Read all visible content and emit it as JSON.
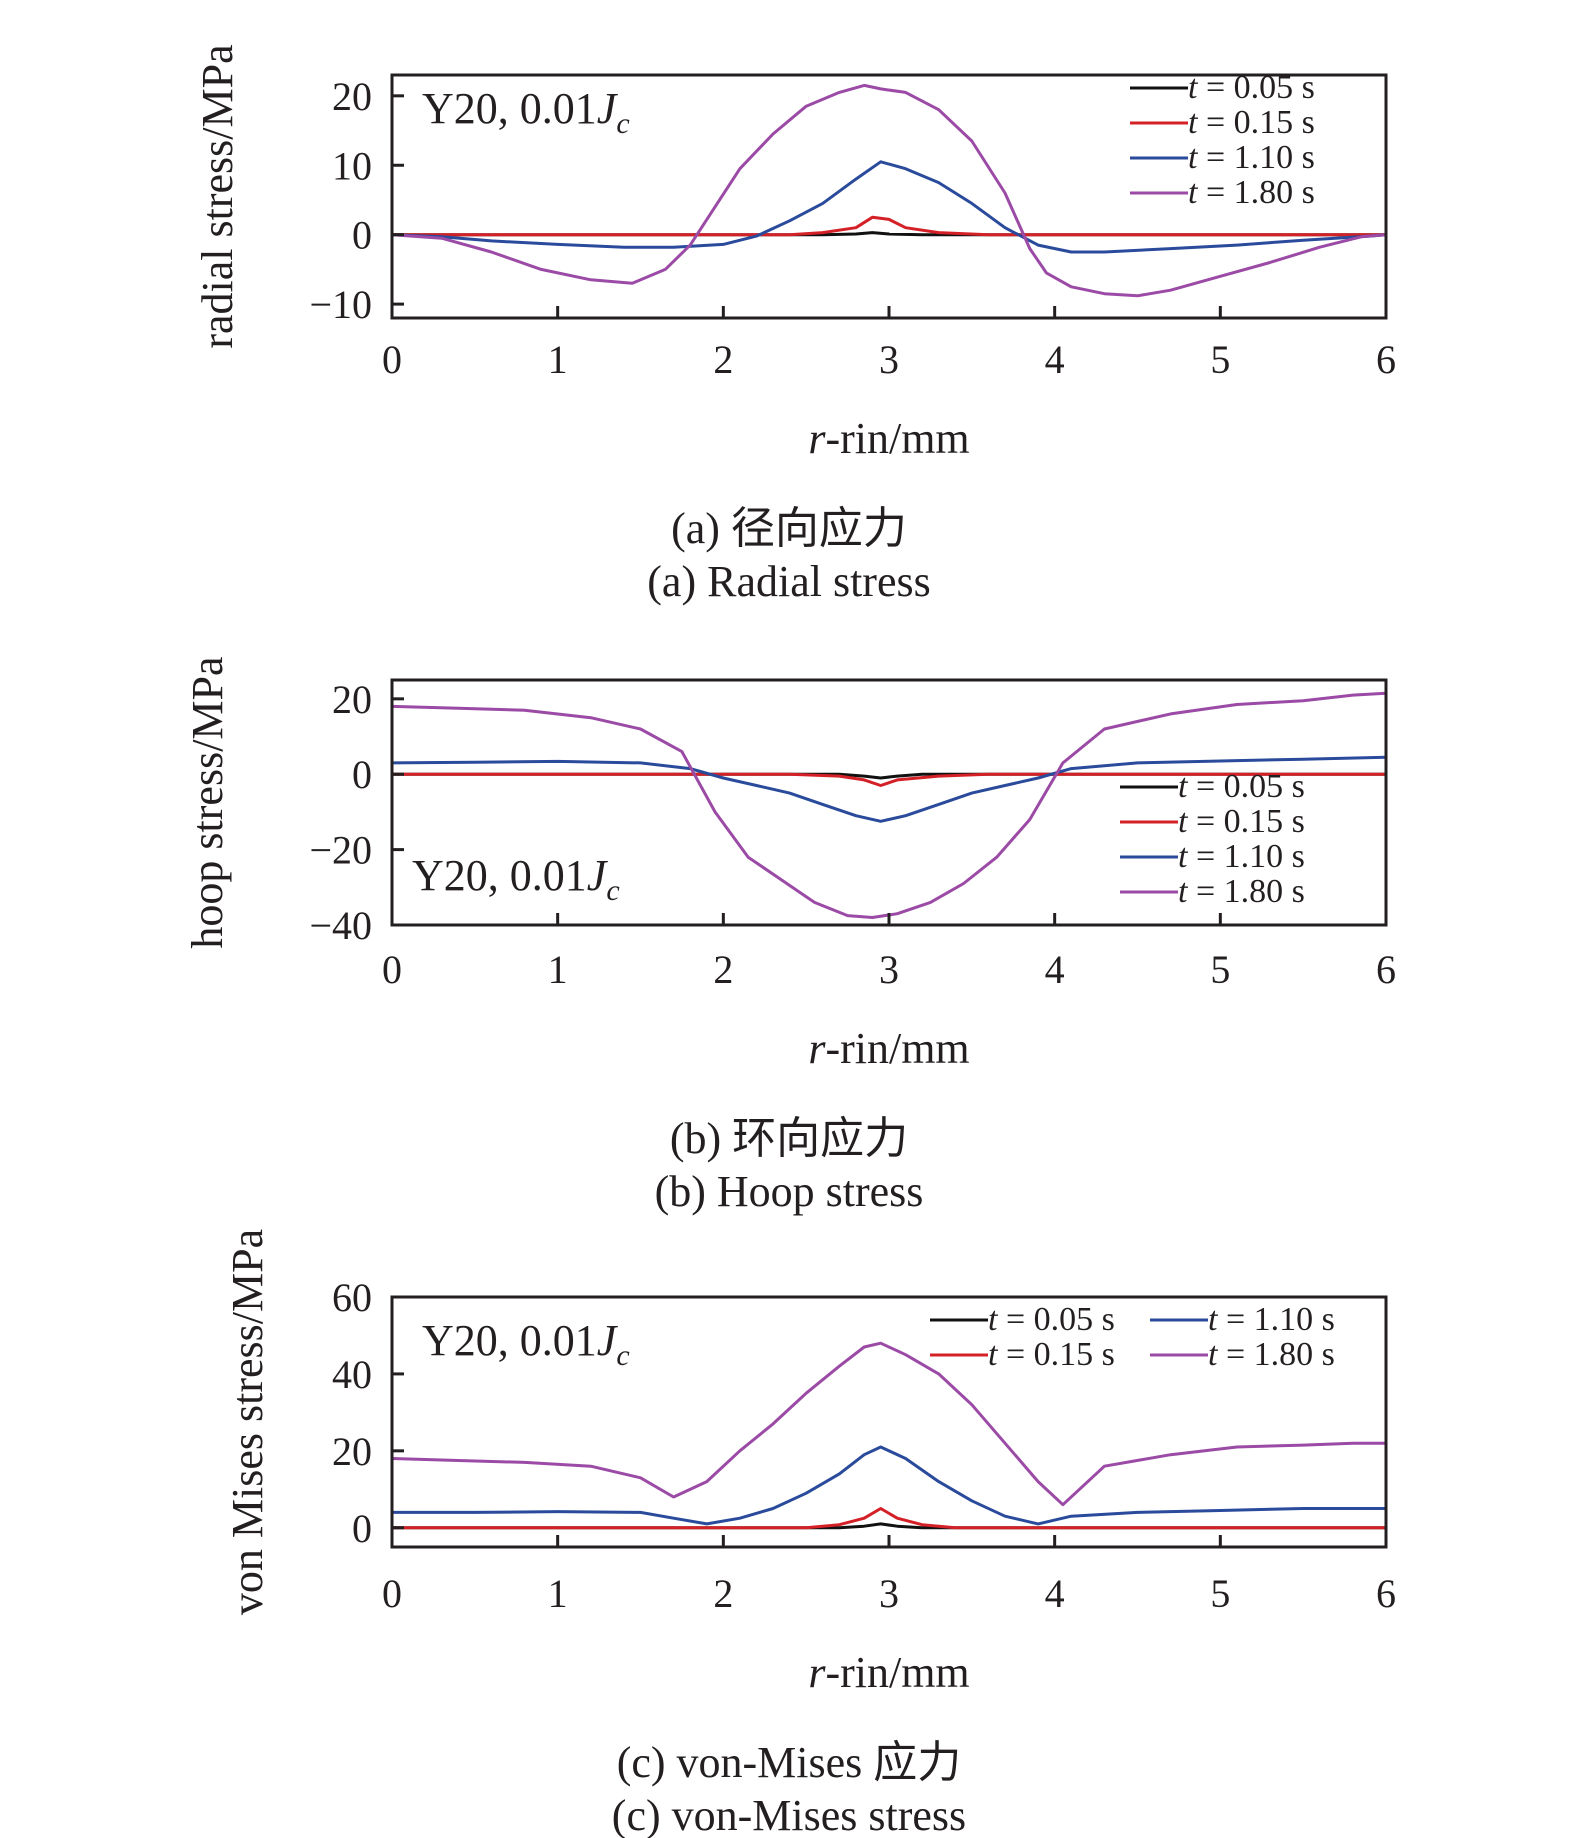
{
  "colors": {
    "t005": "#111111",
    "t015": "#d42027",
    "t110": "#2a4a9b",
    "t180": "#9b4aa6",
    "axis": "#231f20"
  },
  "chart_data": [
    {
      "id": "radial",
      "type": "line",
      "title": "",
      "xlabel_italic": "r",
      "xlabel_rest": "-rin/mm",
      "ylabel": "radial stress/MPa",
      "xlim": [
        0,
        6
      ],
      "ylim": [
        -12,
        23
      ],
      "xticks": [
        "0",
        "1",
        "2",
        "3",
        "4",
        "5",
        "6"
      ],
      "yticks": [
        {
          "value": -10,
          "label": "−10"
        },
        {
          "value": 0,
          "label": "0"
        },
        {
          "value": 10,
          "label": "10"
        },
        {
          "value": 20,
          "label": "20"
        }
      ],
      "annotation": {
        "main": "Y20, 0.01",
        "J": "J",
        "sub": "c"
      },
      "legend": {
        "placement": "top-right",
        "layout": "one-column"
      },
      "caption_cn": "(a) 径向应力",
      "caption_en": "(a) Radial stress",
      "series": [
        {
          "name_t": "t",
          "name_rest": " = 0.05 s",
          "color_key": "t005",
          "x": [
            0,
            2.6,
            2.8,
            2.9,
            3.0,
            3.2,
            6
          ],
          "y": [
            0,
            0,
            0.1,
            0.3,
            0.1,
            0,
            0
          ]
        },
        {
          "name_t": "t",
          "name_rest": " = 0.15 s",
          "color_key": "t015",
          "x": [
            0,
            2.4,
            2.6,
            2.8,
            2.9,
            3.0,
            3.1,
            3.3,
            3.6,
            6
          ],
          "y": [
            0,
            0,
            0.3,
            1.0,
            2.5,
            2.2,
            1.0,
            0.3,
            0,
            0
          ]
        },
        {
          "name_t": "t",
          "name_rest": " = 1.10 s",
          "color_key": "t110",
          "x": [
            0,
            0.3,
            0.6,
            1.0,
            1.4,
            1.7,
            2.0,
            2.2,
            2.4,
            2.6,
            2.8,
            2.95,
            3.1,
            3.3,
            3.5,
            3.7,
            3.9,
            4.1,
            4.3,
            4.7,
            5.1,
            5.5,
            5.9,
            6
          ],
          "y": [
            0,
            -0.3,
            -0.9,
            -1.4,
            -1.8,
            -1.8,
            -1.4,
            -0.2,
            2.0,
            4.5,
            8.0,
            10.5,
            9.5,
            7.5,
            4.5,
            1.0,
            -1.5,
            -2.5,
            -2.5,
            -2.0,
            -1.5,
            -0.8,
            -0.2,
            0
          ]
        },
        {
          "name_t": "t",
          "name_rest": " = 1.80 s",
          "color_key": "t180",
          "x": [
            0,
            0.3,
            0.6,
            0.9,
            1.2,
            1.45,
            1.65,
            1.8,
            1.95,
            2.1,
            2.3,
            2.5,
            2.7,
            2.85,
            2.95,
            3.1,
            3.3,
            3.5,
            3.7,
            3.85,
            3.95,
            4.1,
            4.3,
            4.5,
            4.7,
            5.0,
            5.3,
            5.6,
            5.85,
            6
          ],
          "y": [
            0,
            -0.5,
            -2.5,
            -5.0,
            -6.5,
            -7.0,
            -5.0,
            -1.5,
            4.0,
            9.5,
            14.5,
            18.5,
            20.5,
            21.5,
            21.0,
            20.5,
            18.0,
            13.5,
            6.0,
            -2.0,
            -5.5,
            -7.5,
            -8.5,
            -8.8,
            -8.0,
            -6.0,
            -4.0,
            -1.8,
            -0.3,
            0
          ]
        }
      ]
    },
    {
      "id": "hoop",
      "type": "line",
      "title": "",
      "xlabel_italic": "r",
      "xlabel_rest": "-rin/mm",
      "ylabel": "hoop stress/MPa",
      "xlim": [
        0,
        6
      ],
      "ylim": [
        -40,
        25
      ],
      "xticks": [
        "0",
        "1",
        "2",
        "3",
        "4",
        "5",
        "6"
      ],
      "yticks": [
        {
          "value": -40,
          "label": "−40"
        },
        {
          "value": -20,
          "label": "−20"
        },
        {
          "value": 0,
          "label": "0"
        },
        {
          "value": 20,
          "label": "20"
        }
      ],
      "annotation": {
        "main": "Y20, 0.01",
        "J": "J",
        "sub": "c"
      },
      "legend": {
        "placement": "bottom-right",
        "layout": "one-column"
      },
      "caption_cn": "(b) 环向应力",
      "caption_en": "(b) Hoop stress",
      "series": [
        {
          "name_t": "t",
          "name_rest": " = 0.05 s",
          "color_key": "t005",
          "x": [
            0,
            2.7,
            2.85,
            2.95,
            3.05,
            3.2,
            6
          ],
          "y": [
            0,
            0,
            -0.5,
            -1.0,
            -0.5,
            0,
            0
          ]
        },
        {
          "name_t": "t",
          "name_rest": " = 0.15 s",
          "color_key": "t015",
          "x": [
            0,
            2.4,
            2.7,
            2.85,
            2.95,
            3.05,
            3.3,
            3.6,
            6
          ],
          "y": [
            0,
            0,
            -0.5,
            -1.5,
            -3.0,
            -1.5,
            -0.5,
            0,
            0
          ]
        },
        {
          "name_t": "t",
          "name_rest": " = 1.10 s",
          "color_key": "t110",
          "x": [
            0,
            0.5,
            1.0,
            1.5,
            1.8,
            2.0,
            2.2,
            2.4,
            2.6,
            2.8,
            2.95,
            3.1,
            3.3,
            3.5,
            3.7,
            3.9,
            4.1,
            4.5,
            5.0,
            5.5,
            6
          ],
          "y": [
            3.0,
            3.2,
            3.4,
            3.0,
            1.5,
            -1.0,
            -3.0,
            -5.0,
            -8.0,
            -11.0,
            -12.5,
            -11.0,
            -8.0,
            -5.0,
            -3.0,
            -1.0,
            1.5,
            3.0,
            3.5,
            4.0,
            4.5
          ]
        },
        {
          "name_t": "t",
          "name_rest": " = 1.80 s",
          "color_key": "t180",
          "x": [
            0,
            0.4,
            0.8,
            1.2,
            1.5,
            1.75,
            1.95,
            2.15,
            2.35,
            2.55,
            2.75,
            2.9,
            3.05,
            3.25,
            3.45,
            3.65,
            3.85,
            4.05,
            4.3,
            4.7,
            5.1,
            5.5,
            5.8,
            6
          ],
          "y": [
            18.0,
            17.5,
            17.0,
            15.0,
            12.0,
            6.0,
            -10.0,
            -22.0,
            -28.0,
            -34.0,
            -37.5,
            -38.0,
            -37.0,
            -34.0,
            -29.0,
            -22.0,
            -12.0,
            3.0,
            12.0,
            16.0,
            18.5,
            19.5,
            21.0,
            21.5
          ]
        }
      ]
    },
    {
      "id": "vonmises",
      "type": "line",
      "title": "",
      "xlabel_italic": "r",
      "xlabel_rest": "-rin/mm",
      "ylabel": "von Mises stress/MPa",
      "xlim": [
        0,
        6
      ],
      "ylim": [
        -5,
        60
      ],
      "xticks": [
        "0",
        "1",
        "2",
        "3",
        "4",
        "5",
        "6"
      ],
      "yticks": [
        {
          "value": 0,
          "label": "0"
        },
        {
          "value": 20,
          "label": "20"
        },
        {
          "value": 40,
          "label": "40"
        },
        {
          "value": 60,
          "label": "60"
        }
      ],
      "annotation": {
        "main": "Y20, 0.01",
        "J": "J",
        "sub": "c"
      },
      "legend": {
        "placement": "top-right",
        "layout": "two-column"
      },
      "caption_cn": "(c) von-Mises 应力",
      "caption_en": "(c) von-Mises stress",
      "series": [
        {
          "name_t": "t",
          "name_rest": " = 0.05 s",
          "color_key": "t005",
          "x": [
            0,
            2.7,
            2.85,
            2.95,
            3.05,
            3.2,
            6
          ],
          "y": [
            0,
            0,
            0.4,
            1.0,
            0.4,
            0,
            0
          ]
        },
        {
          "name_t": "t",
          "name_rest": " = 0.15 s",
          "color_key": "t015",
          "x": [
            0,
            2.5,
            2.7,
            2.85,
            2.95,
            3.05,
            3.2,
            3.4,
            6
          ],
          "y": [
            0,
            0,
            0.8,
            2.5,
            5.0,
            2.5,
            0.8,
            0,
            0
          ]
        },
        {
          "name_t": "t",
          "name_rest": " = 1.10 s",
          "color_key": "t110",
          "x": [
            0,
            0.5,
            1.0,
            1.5,
            1.7,
            1.9,
            2.1,
            2.3,
            2.5,
            2.7,
            2.85,
            2.95,
            3.1,
            3.3,
            3.5,
            3.7,
            3.9,
            4.1,
            4.5,
            5.0,
            5.5,
            6
          ],
          "y": [
            4.0,
            4.0,
            4.2,
            4.0,
            2.5,
            1.0,
            2.5,
            5.0,
            9.0,
            14.0,
            19.0,
            21.0,
            18.0,
            12.0,
            7.0,
            3.0,
            1.0,
            3.0,
            4.0,
            4.5,
            5.0,
            5.0
          ]
        },
        {
          "name_t": "t",
          "name_rest": " = 1.80 s",
          "color_key": "t180",
          "x": [
            0,
            0.4,
            0.8,
            1.2,
            1.5,
            1.7,
            1.9,
            2.1,
            2.3,
            2.5,
            2.7,
            2.85,
            2.95,
            3.1,
            3.3,
            3.5,
            3.7,
            3.9,
            4.05,
            4.3,
            4.7,
            5.1,
            5.5,
            5.8,
            6
          ],
          "y": [
            18.0,
            17.5,
            17.0,
            16.0,
            13.0,
            8.0,
            12.0,
            20.0,
            27.0,
            35.0,
            42.0,
            47.0,
            48.0,
            45.0,
            40.0,
            32.0,
            22.0,
            12.0,
            6.0,
            16.0,
            19.0,
            21.0,
            21.5,
            22.0,
            22.0
          ]
        }
      ]
    }
  ]
}
